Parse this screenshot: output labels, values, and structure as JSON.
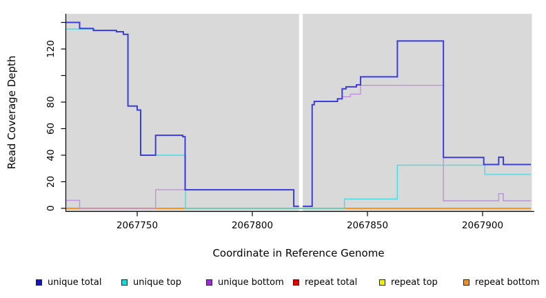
{
  "chart_data": {
    "type": "line",
    "subtype": "step-coverage-plot",
    "title": "",
    "xlabel": "Coordinate in Reference Genome",
    "ylabel": "Read Coverage Depth",
    "xlim": [
      2067719,
      2067921
    ],
    "ylim": [
      0,
      146
    ],
    "grid": "off",
    "plot_bg": "#d9d9d9",
    "gap_region": {
      "x_start": 2067820.3,
      "x_end": 2067821.9
    },
    "x_ticks": [
      {
        "value": 2067750,
        "label": "2067750"
      },
      {
        "value": 2067800,
        "label": "2067800"
      },
      {
        "value": 2067850,
        "label": "2067850"
      },
      {
        "value": 2067900,
        "label": "2067900"
      }
    ],
    "y_ticks": [
      {
        "value": 0,
        "label": "0"
      },
      {
        "value": 20,
        "label": "20"
      },
      {
        "value": 40,
        "label": "40"
      },
      {
        "value": 60,
        "label": "60"
      },
      {
        "value": 80,
        "label": "80"
      },
      {
        "value": 100,
        "label": ""
      },
      {
        "value": 120,
        "label": "120"
      },
      {
        "value": 140,
        "label": ""
      }
    ],
    "series": [
      {
        "name": "repeat total",
        "color": "#dd2222",
        "width": 1.4,
        "segments": [
          [
            [
              2067719,
              0
            ],
            [
              2067921,
              0
            ]
          ]
        ]
      },
      {
        "name": "repeat top",
        "color": "#f0f000",
        "width": 1.4,
        "segments": [
          [
            [
              2067719,
              0
            ],
            [
              2067921,
              0
            ]
          ]
        ]
      },
      {
        "name": "repeat bottom",
        "color": "#f5941e",
        "width": 2,
        "segments": [
          [
            [
              2067719,
              0
            ],
            [
              2067921,
              0
            ]
          ]
        ]
      },
      {
        "name": "unique bottom",
        "color": "#bd8fdc",
        "width": 1.4,
        "segments": [
          [
            [
              2067719,
              6
            ],
            [
              2067725,
              0
            ],
            [
              2067758,
              14
            ],
            [
              2067818,
              1.5
            ],
            [
              2067820.3,
              1.5
            ]
          ],
          [
            [
              2067821.9,
              1.5
            ],
            [
              2067826,
              78
            ],
            [
              2067826.9,
              80.5
            ],
            [
              2067837,
              82.5
            ],
            [
              2067839,
              84
            ],
            [
              2067842.6,
              86
            ],
            [
              2067847,
              92.6
            ],
            [
              2067883,
              5.7
            ],
            [
              2067907,
              11
            ],
            [
              2067909,
              5.7
            ],
            [
              2067921,
              5.7
            ]
          ]
        ]
      },
      {
        "name": "unique top",
        "color": "#45dbe4",
        "width": 1.4,
        "segments": [
          [
            [
              2067719,
              135
            ],
            [
              2067731,
              134
            ],
            [
              2067741,
              133
            ],
            [
              2067744,
              131
            ],
            [
              2067746,
              77
            ],
            [
              2067750,
              74
            ],
            [
              2067751.5,
              40
            ],
            [
              2067771,
              0
            ],
            [
              2067840,
              7
            ],
            [
              2067863,
              32.5
            ],
            [
              2067901,
              25.5
            ],
            [
              2067921,
              25.5
            ]
          ]
        ]
      },
      {
        "name": "unique total",
        "color": "#3c3cdc",
        "width": 2,
        "segments": [
          [
            [
              2067719,
              140
            ],
            [
              2067725,
              135.5
            ],
            [
              2067731,
              134
            ],
            [
              2067741,
              133
            ],
            [
              2067744,
              131
            ],
            [
              2067746,
              77
            ],
            [
              2067750,
              74
            ],
            [
              2067751.5,
              40
            ],
            [
              2067758,
              55
            ],
            [
              2067769.8,
              54
            ],
            [
              2067770.8,
              14
            ],
            [
              2067818,
              1.5
            ],
            [
              2067820.3,
              1.5
            ]
          ],
          [
            [
              2067821.9,
              1.5
            ],
            [
              2067826,
              78
            ],
            [
              2067826.9,
              80.5
            ],
            [
              2067837,
              82.5
            ],
            [
              2067839,
              90
            ],
            [
              2067840.7,
              91.5
            ],
            [
              2067845.2,
              93
            ],
            [
              2067847,
              99
            ],
            [
              2067863,
              126
            ],
            [
              2067883,
              38.3
            ],
            [
              2067900.5,
              33
            ],
            [
              2067907,
              38.5
            ],
            [
              2067909,
              33
            ],
            [
              2067921,
              33
            ]
          ]
        ]
      }
    ]
  },
  "legend": {
    "items": [
      {
        "label": "unique total",
        "swatch": "#1414cc"
      },
      {
        "label": "unique top",
        "swatch": "#00e0e0"
      },
      {
        "label": "unique bottom",
        "swatch": "#9a30cc"
      },
      {
        "label": "repeat total",
        "swatch": "#e00000"
      },
      {
        "label": "repeat top",
        "swatch": "#f0f000"
      },
      {
        "label": "repeat bottom",
        "swatch": "#f09020"
      }
    ]
  }
}
